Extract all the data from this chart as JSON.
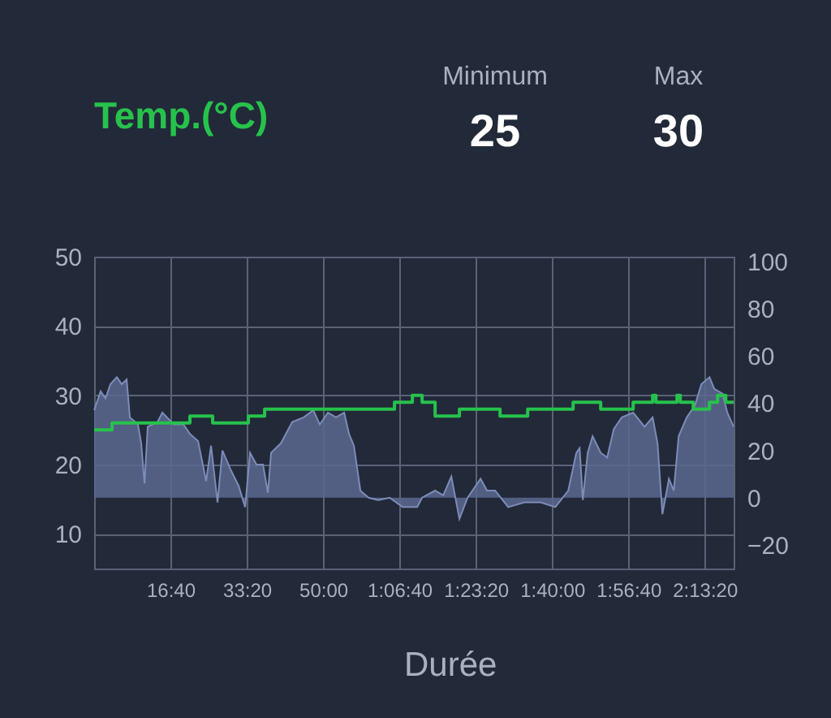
{
  "chart_data": {
    "type": "step",
    "title": "Temp.(°C)",
    "xlabel": "Durée",
    "annotations": [
      "Minimum",
      "25",
      "Max",
      "30"
    ],
    "xlim": [
      0,
      8380
    ],
    "xticks": [
      {
        "value": 1000,
        "label": "16:40"
      },
      {
        "value": 2000,
        "label": "33:20"
      },
      {
        "value": 3000,
        "label": "50:00"
      },
      {
        "value": 4000,
        "label": "1:06:40"
      },
      {
        "value": 5000,
        "label": "1:23:20"
      },
      {
        "value": 6000,
        "label": "1:40:00"
      },
      {
        "value": 7000,
        "label": "1:56:40"
      },
      {
        "value": 8000,
        "label": "2:13:20"
      }
    ],
    "ylim": [
      5,
      50
    ],
    "yticks": [
      10,
      20,
      30,
      40,
      50
    ],
    "y2lim": [
      -30,
      102
    ],
    "y2ticks": [
      -20,
      0,
      20,
      40,
      60,
      80,
      100
    ],
    "grid": true,
    "series": [
      {
        "type": "area",
        "axis": "y2",
        "color": "#5b6890",
        "x": [
          0,
          85,
          149,
          213,
          298,
          362,
          426,
          468,
          574,
          617,
          660,
          702,
          830,
          894,
          1043,
          1170,
          1255,
          1362,
          1468,
          1532,
          1617,
          1681,
          1787,
          1894,
          1979,
          2043,
          2128,
          2213,
          2277,
          2319,
          2447,
          2596,
          2745,
          2872,
          2957,
          3064,
          3170,
          3277,
          3340,
          3404,
          3489,
          3596,
          3723,
          3872,
          4043,
          4234,
          4298,
          4468,
          4574,
          4681,
          4787,
          4894,
          5064,
          5149,
          5255,
          5426,
          5638,
          5851,
          6043,
          6213,
          6319,
          6362,
          6404,
          6468,
          6532,
          6638,
          6723,
          6809,
          6915,
          7064,
          7213,
          7319,
          7383,
          7447,
          7532,
          7596,
          7660,
          7766,
          7872,
          7957,
          8064,
          8128,
          8234,
          8298,
          8380
        ],
        "values": [
          37,
          45,
          42,
          48,
          51,
          48,
          50,
          34,
          31,
          23,
          6,
          30,
          32,
          36,
          31,
          31,
          27,
          24,
          7,
          22,
          -2,
          20,
          12,
          5,
          -4,
          19,
          14,
          14,
          2,
          19,
          23,
          32,
          34,
          37,
          31,
          36,
          34,
          36,
          27,
          22,
          3,
          0,
          -1,
          0,
          -4,
          -4,
          0,
          3,
          1,
          9,
          -9,
          0,
          8,
          3,
          3,
          -4,
          -2,
          -2,
          -4,
          3,
          19,
          21,
          -1,
          19,
          26,
          19,
          17,
          29,
          34,
          36,
          30,
          34,
          23,
          -7,
          8,
          3,
          26,
          34,
          39,
          48,
          51,
          46,
          44,
          36,
          30
        ]
      },
      {
        "axis": "y",
        "color": "#27c24c",
        "x": [
          0,
          234,
          1255,
          1553,
          2021,
          2234,
          3936,
          4170,
          4298,
          4468,
          4787,
          5319,
          5681,
          6277,
          6638,
          7064,
          7319,
          7362,
          7638,
          7681,
          7851,
          8064,
          8170,
          8277,
          8380
        ],
        "values": [
          25,
          26,
          27,
          26,
          27,
          28,
          29,
          30,
          29,
          27,
          28,
          27,
          28,
          29,
          28,
          29,
          30,
          29,
          30,
          29,
          28,
          29,
          30,
          29,
          29
        ]
      }
    ]
  }
}
